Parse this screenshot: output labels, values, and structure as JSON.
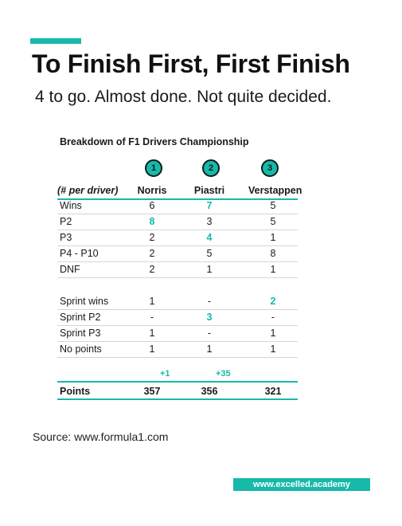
{
  "headline": "To Finish First, First Finish",
  "subhead": "4 to go. Almost done. Not quite decided.",
  "table": {
    "title": "Breakdown of F1 Drivers Championship",
    "ranks": [
      "1",
      "2",
      "3"
    ],
    "header": {
      "label": "(# per driver)",
      "drivers": [
        "Norris",
        "Piastri",
        "Verstappen"
      ]
    },
    "rows": [
      {
        "label": "Wins",
        "values": [
          "6",
          "7",
          "5"
        ],
        "highlight": [
          false,
          true,
          false
        ]
      },
      {
        "label": "P2",
        "values": [
          "8",
          "3",
          "5"
        ],
        "highlight": [
          true,
          false,
          false
        ]
      },
      {
        "label": "P3",
        "values": [
          "2",
          "4",
          "1"
        ],
        "highlight": [
          false,
          true,
          false
        ]
      },
      {
        "label": "P4 - P10",
        "values": [
          "2",
          "5",
          "8"
        ],
        "highlight": [
          false,
          false,
          false
        ]
      },
      {
        "label": "DNF",
        "values": [
          "2",
          "1",
          "1"
        ],
        "highlight": [
          false,
          false,
          false
        ]
      },
      {
        "label": "Sprint wins",
        "values": [
          "1",
          "-",
          "2"
        ],
        "highlight": [
          false,
          false,
          true
        ]
      },
      {
        "label": "Sprint P2",
        "values": [
          "-",
          "3",
          "-"
        ],
        "highlight": [
          false,
          true,
          false
        ]
      },
      {
        "label": "Sprint P3",
        "values": [
          "1",
          "-",
          "1"
        ],
        "highlight": [
          false,
          false,
          false
        ]
      },
      {
        "label": "No points",
        "values": [
          "1",
          "1",
          "1"
        ],
        "highlight": [
          false,
          false,
          false
        ]
      }
    ],
    "deltas": {
      "norris": "+1",
      "piastri": "+35"
    },
    "points": {
      "label": "Points",
      "values": [
        "357",
        "356",
        "321"
      ]
    }
  },
  "source": "Source: www.formula1.com",
  "brand": "www.excelled.academy",
  "colors": {
    "accent": "#17b9a9",
    "text": "#1a1a1a"
  }
}
